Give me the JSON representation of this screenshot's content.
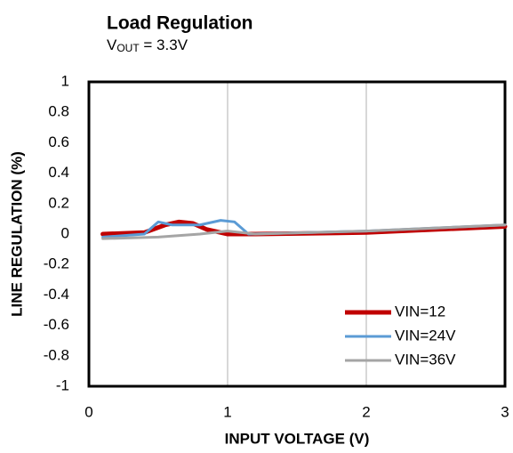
{
  "chart_data": {
    "type": "line",
    "title": "Load Regulation",
    "subtitle": {
      "main": "V",
      "sub": "OUT",
      "rest": " = 3.3V"
    },
    "x_label": "INPUT VOLTAGE  (V)",
    "y_label": "LINE REGULATION  (%)",
    "xlim": [
      0,
      3
    ],
    "xticks": [
      0,
      1,
      2,
      3
    ],
    "ylim": [
      -1,
      1
    ],
    "yticks": [
      1,
      0.8,
      0.6,
      0.4,
      0.2,
      0,
      -0.2,
      -0.4,
      -0.6,
      -0.8,
      -1
    ],
    "xgrid": true,
    "ygrid": false,
    "legend": "lower right",
    "series": [
      {
        "name": "VIN=12",
        "color": "#c00000",
        "width": 5,
        "x": [
          0.1,
          0.4,
          0.55,
          0.65,
          0.75,
          0.85,
          1.0,
          1.2,
          2,
          3
        ],
        "values": [
          0,
          0.01,
          0.06,
          0.08,
          0.07,
          0.03,
          0,
          0,
          0.01,
          0.05
        ]
      },
      {
        "name": "VIN=24V",
        "color": "#5b9bd5",
        "width": 3,
        "x": [
          0.1,
          0.4,
          0.5,
          0.6,
          0.8,
          0.95,
          1.05,
          1.15,
          2,
          3
        ],
        "values": [
          -0.02,
          0,
          0.08,
          0.06,
          0.06,
          0.09,
          0.08,
          0,
          0.02,
          0.06
        ]
      },
      {
        "name": "VIN=36V",
        "color": "#a5a5a5",
        "width": 3,
        "x": [
          0.1,
          0.5,
          0.8,
          1.0,
          1.2,
          2,
          3
        ],
        "values": [
          -0.03,
          -0.02,
          0,
          0.02,
          0,
          0.02,
          0.06
        ]
      }
    ]
  }
}
